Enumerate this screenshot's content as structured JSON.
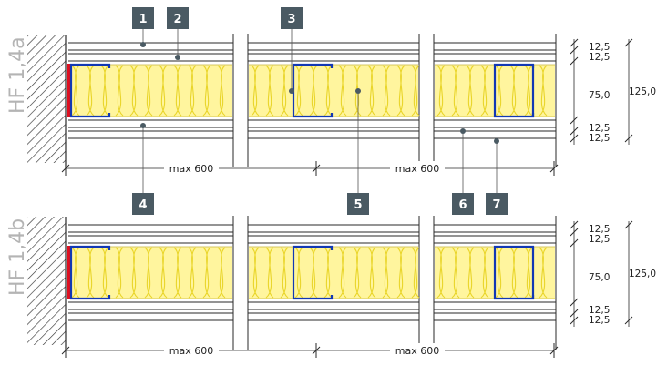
{
  "colors": {
    "insulation": "#fff59e",
    "insulation_wave": "#e9d52a",
    "stud": "#1238b4",
    "sealant": "#e0101f",
    "badge": "#4a5a63",
    "line": "#2a2a2a",
    "label_gray": "#b4b4b4"
  },
  "variant_a": {
    "label": "HF 1,4a"
  },
  "variant_b": {
    "label": "HF 1,4b"
  },
  "badges": [
    "1",
    "2",
    "3",
    "4",
    "5",
    "6",
    "7"
  ],
  "dims_right": [
    "12,5",
    "12,5",
    "75,0",
    "12,5",
    "12,5"
  ],
  "dim_total": "125,0",
  "spacing_labels": [
    "max 600",
    "max 600"
  ]
}
